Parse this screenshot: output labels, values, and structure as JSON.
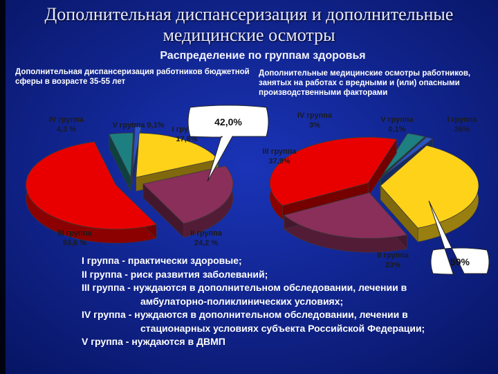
{
  "header": {
    "title_line1": "Дополнительная диспансеризация и дополнительные",
    "title_line2": "медицинские осмотры",
    "subtitle": "Распределение по группам здоровья"
  },
  "colors": {
    "background": "#0b1e86",
    "group1": "#ffd21a",
    "group2": "#8a2e5a",
    "group3": "#e80000",
    "group4": "#1e7f80",
    "group5": "#2a53c8"
  },
  "chart_data": [
    {
      "type": "pie",
      "title": "Дополнительная диспансеризация работников бюджетной сферы в возрасте 35-55 лет",
      "slices": [
        {
          "name": "I группа",
          "value": 17.8,
          "label": "I группа\n17,8%"
        },
        {
          "name": "II группа",
          "value": 24.2,
          "label": "II группа\n24,2 %"
        },
        {
          "name": "III группа",
          "value": 53.6,
          "label": "III группа\n53,6 %"
        },
        {
          "name": "IV группа",
          "value": 4.3,
          "label": "IV группа\n4,3 %"
        },
        {
          "name": "V группа",
          "value": 0.1,
          "label": "V группа 0,1%"
        }
      ],
      "callout": "42,0%"
    },
    {
      "type": "pie",
      "title": "Дополнительные медицинские осмотры работников, занятых на работах с вредными и (или) опасными производственными факторами",
      "slices": [
        {
          "name": "I группа",
          "value": 36,
          "label": "I группа\n36%"
        },
        {
          "name": "II группа",
          "value": 23,
          "label": "II группа\n23%"
        },
        {
          "name": "III группа",
          "value": 37.9,
          "label": "III группа\n37,9%"
        },
        {
          "name": "IV группа",
          "value": 3,
          "label": "IV группа\n3%"
        },
        {
          "name": "V группа",
          "value": 0.1,
          "label": "V группа\n0,1%"
        }
      ],
      "callout": "59%"
    }
  ],
  "legend": {
    "line1": "I группа - практически здоровые;",
    "line2": "II группа - риск развития заболеваний;",
    "line3a": "III группа - нуждаются в дополнительном обследовании, лечении в",
    "line3b": "амбулаторно-поликлинических условиях;",
    "line4a": "IV группа - нуждаются в дополнительном обследовании, лечении в",
    "line4b": "стационарных условиях субъекта Российской Федерации;",
    "line5": "V группа - нуждаются в ДВМП"
  }
}
